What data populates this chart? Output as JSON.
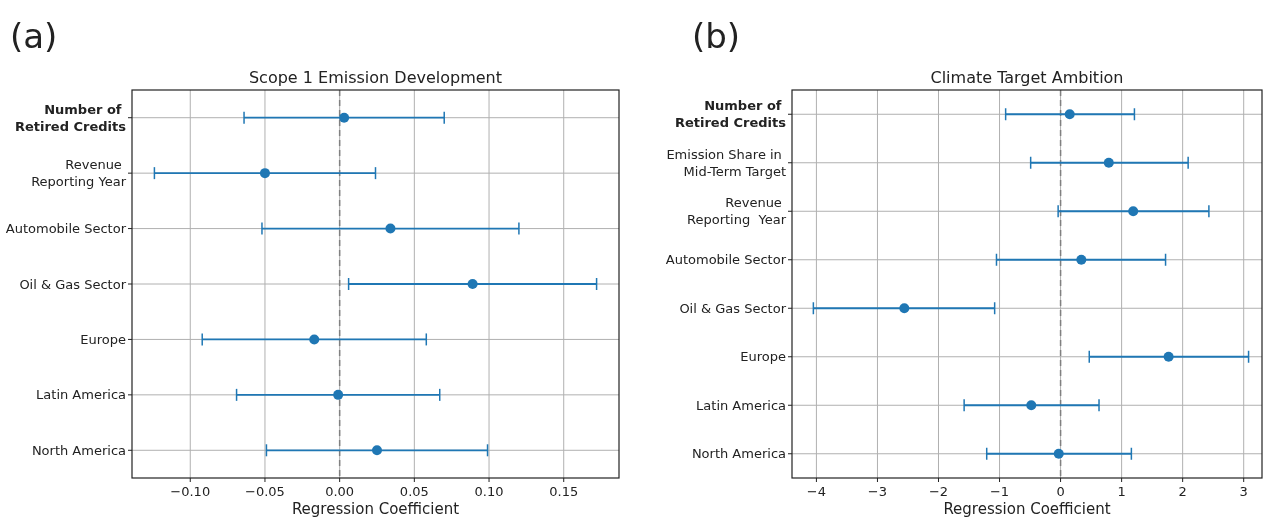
{
  "chart_data": [
    {
      "type": "scatter",
      "orientation": "horizontal",
      "title": "Scope 1 Emission Development",
      "xlabel": "Regression Coefficient",
      "annotations": [
        "(a)"
      ],
      "categories": [
        "Number of \nRetired Credits",
        "Revenue \nReporting Year",
        "Automobile Sector",
        "Oil & Gas Sector",
        "Europe",
        "Latin America",
        "North America"
      ],
      "series": [
        {
          "color": "#1f77b4",
          "values": [
            0.003,
            -0.05,
            0.034,
            0.089,
            -0.017,
            -0.001,
            0.025
          ],
          "errors": [
            [
              -0.064,
              0.07
            ],
            [
              -0.124,
              0.024
            ],
            [
              -0.052,
              0.12
            ],
            [
              0.006,
              0.172
            ],
            [
              -0.092,
              0.058
            ],
            [
              -0.069,
              0.067
            ],
            [
              -0.049,
              0.099
            ]
          ]
        }
      ],
      "xlim": [
        -0.139,
        0.187
      ],
      "xticks": [
        {
          "value": -0.1,
          "label": "−0.10"
        },
        {
          "value": -0.05,
          "label": "−0.05"
        },
        {
          "value": 0,
          "label": "0.00"
        },
        {
          "value": 0.05,
          "label": "0.05"
        },
        {
          "value": 0.1,
          "label": "0.10"
        },
        {
          "value": 0.15,
          "label": "0.15"
        }
      ],
      "grid": true,
      "marker": "circle",
      "ref_lines": [
        {
          "axis": "x",
          "value": 0,
          "color": "#808080",
          "line_style": "dashed"
        }
      ]
    },
    {
      "type": "scatter",
      "orientation": "horizontal",
      "title": "Climate Target Ambition",
      "xlabel": "Regression Coefficient",
      "annotations": [
        "(b)"
      ],
      "categories": [
        "Number of \nRetired Credits",
        "Emission Share in \nMid-Term Target",
        "Revenue \nReporting  Year",
        "Automobile Sector",
        "Oil & Gas Sector",
        "Europe",
        "Latin America",
        "North America"
      ],
      "series": [
        {
          "color": "#1f77b4",
          "values": [
            0.15,
            0.79,
            1.19,
            0.34,
            -2.56,
            1.77,
            -0.48,
            -0.03
          ],
          "errors": [
            [
              -0.9,
              1.21
            ],
            [
              -0.49,
              2.09
            ],
            [
              -0.04,
              2.43
            ],
            [
              -1.05,
              1.72
            ],
            [
              -4.05,
              -1.08
            ],
            [
              0.47,
              3.08
            ],
            [
              -1.58,
              0.63
            ],
            [
              -1.21,
              1.16
            ]
          ]
        }
      ],
      "xlim": [
        -4.4,
        3.3
      ],
      "xticks": [
        {
          "value": -4,
          "label": "−4"
        },
        {
          "value": -3,
          "label": "−3"
        },
        {
          "value": -2,
          "label": "−2"
        },
        {
          "value": -1,
          "label": "−1"
        },
        0,
        1,
        2,
        3
      ],
      "grid": true,
      "marker": "circle",
      "ref_lines": [
        {
          "axis": "x",
          "value": 0,
          "color": "#808080",
          "line_style": "dashed"
        }
      ]
    }
  ]
}
